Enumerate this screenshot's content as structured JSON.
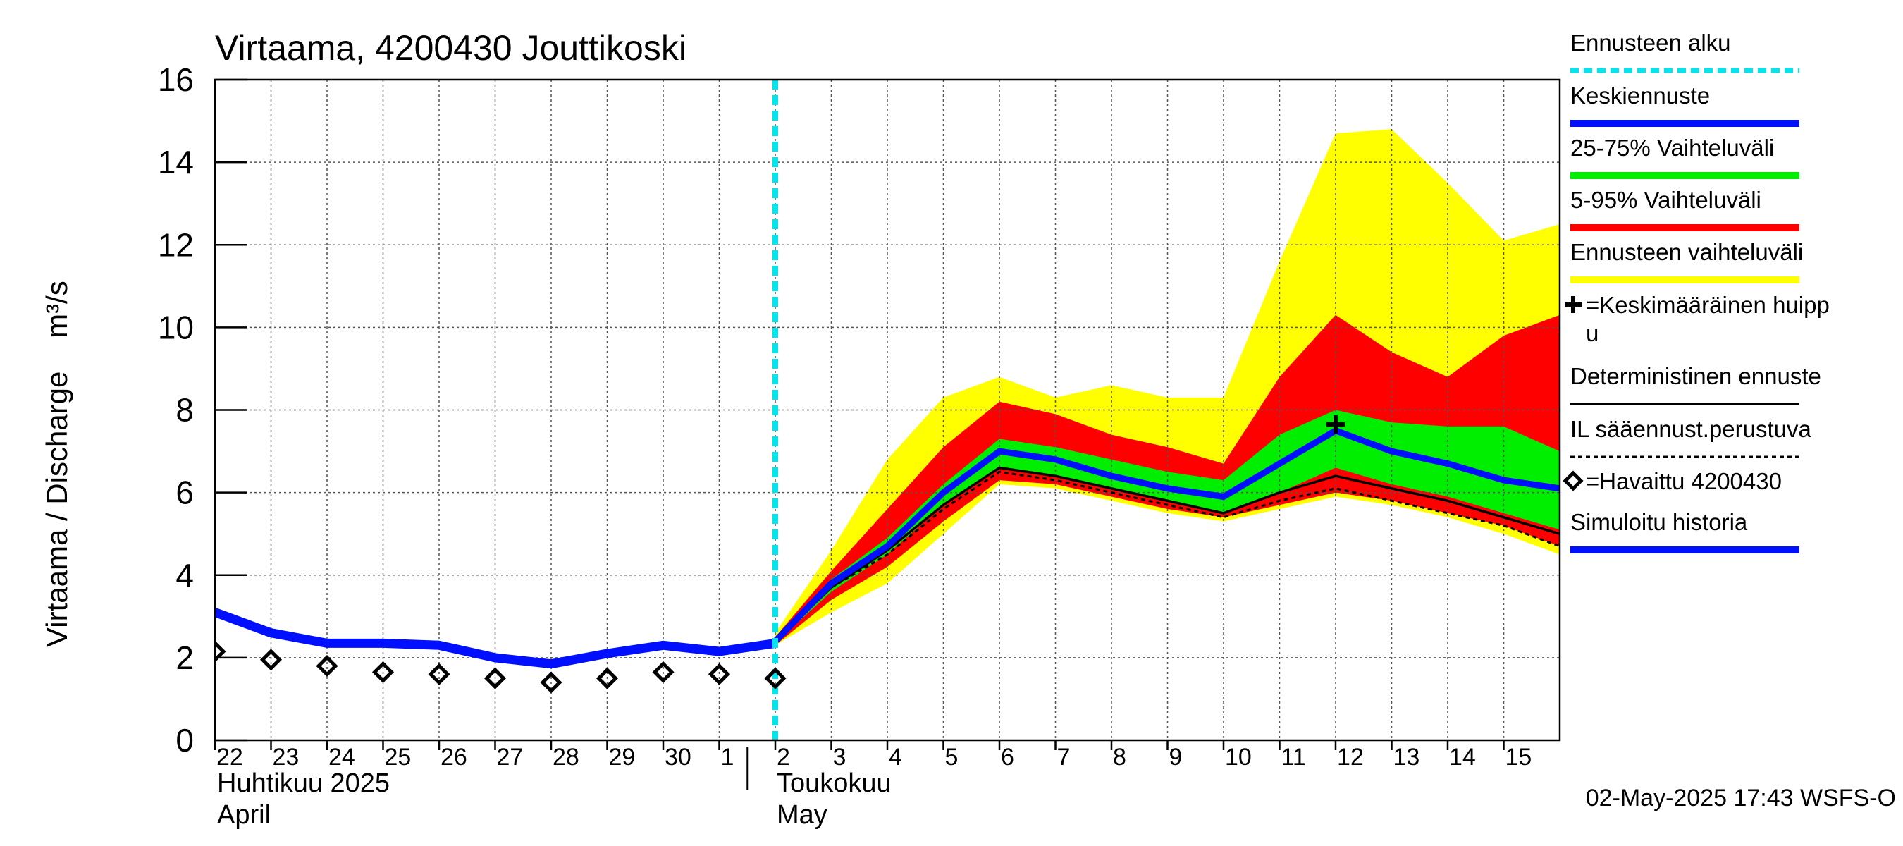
{
  "chart_data": {
    "type": "area",
    "title": "Virtaama, 4200430 Jouttikoski",
    "ylabel": "Virtaama / Discharge    m³/s",
    "ylim": [
      0,
      16
    ],
    "yticks": [
      0,
      2,
      4,
      6,
      8,
      10,
      12,
      14,
      16
    ],
    "x_day_labels": [
      "22",
      "23",
      "24",
      "25",
      "26",
      "27",
      "28",
      "29",
      "30",
      "1",
      "2",
      "3",
      "4",
      "5",
      "6",
      "7",
      "8",
      "9",
      "10",
      "11",
      "12",
      "13",
      "14",
      "15"
    ],
    "month_labels": [
      {
        "line1": "Huhtikuu  2025",
        "line2": "April"
      },
      {
        "line1": "Toukokuu",
        "line2": "May"
      }
    ],
    "forecast_start": "2025-05-02",
    "simulated_history": {
      "x": [
        "2025-04-22",
        "2025-04-23",
        "2025-04-24",
        "2025-04-25",
        "2025-04-26",
        "2025-04-27",
        "2025-04-28",
        "2025-04-29",
        "2025-04-30",
        "2025-05-01",
        "2025-05-02"
      ],
      "y": [
        3.1,
        2.6,
        2.35,
        2.35,
        2.3,
        2.0,
        1.85,
        2.1,
        2.3,
        2.15,
        2.35
      ]
    },
    "observed": {
      "x": [
        "2025-04-22",
        "2025-04-23",
        "2025-04-24",
        "2025-04-25",
        "2025-04-26",
        "2025-04-27",
        "2025-04-28",
        "2025-04-29",
        "2025-04-30",
        "2025-05-01",
        "2025-05-02"
      ],
      "y": [
        2.15,
        1.95,
        1.8,
        1.65,
        1.6,
        1.5,
        1.4,
        1.5,
        1.65,
        1.6,
        1.5
      ]
    },
    "forecast": {
      "x": [
        "2025-05-02",
        "2025-05-03",
        "2025-05-04",
        "2025-05-05",
        "2025-05-06",
        "2025-05-07",
        "2025-05-08",
        "2025-05-09",
        "2025-05-10",
        "2025-05-11",
        "2025-05-12",
        "2025-05-13",
        "2025-05-14",
        "2025-05-15",
        "2025-05-16"
      ],
      "range_min": [
        2.3,
        3.1,
        3.8,
        5.0,
        6.2,
        6.1,
        5.8,
        5.5,
        5.3,
        5.6,
        5.9,
        5.7,
        5.4,
        5.0,
        4.5
      ],
      "range_max": [
        2.6,
        4.6,
        6.8,
        8.3,
        8.8,
        8.3,
        8.6,
        8.3,
        8.3,
        11.6,
        14.7,
        14.8,
        13.5,
        12.1,
        12.5
      ],
      "p5": [
        2.3,
        3.4,
        4.2,
        5.3,
        6.3,
        6.2,
        5.9,
        5.6,
        5.4,
        5.7,
        6.0,
        5.8,
        5.5,
        5.2,
        4.7
      ],
      "p95": [
        2.5,
        4.1,
        5.6,
        7.1,
        8.2,
        7.9,
        7.4,
        7.1,
        6.7,
        8.8,
        10.3,
        9.4,
        8.8,
        9.8,
        10.3
      ],
      "p25": [
        2.35,
        3.6,
        4.5,
        5.7,
        6.6,
        6.4,
        6.1,
        5.8,
        5.5,
        6.0,
        6.6,
        6.2,
        5.9,
        5.5,
        5.1
      ],
      "p75": [
        2.45,
        3.9,
        4.9,
        6.2,
        7.3,
        7.1,
        6.8,
        6.5,
        6.3,
        7.4,
        8.0,
        7.7,
        7.6,
        7.6,
        7.0
      ],
      "mean": [
        2.4,
        3.8,
        4.7,
        6.0,
        7.0,
        6.8,
        6.4,
        6.1,
        5.9,
        6.7,
        7.5,
        7.0,
        6.7,
        6.3,
        6.1
      ],
      "deterministic": [
        2.4,
        3.7,
        4.6,
        5.7,
        6.6,
        6.4,
        6.1,
        5.8,
        5.5,
        6.0,
        6.4,
        6.1,
        5.8,
        5.4,
        5.0
      ],
      "il_weather": [
        2.4,
        3.7,
        4.5,
        5.6,
        6.5,
        6.3,
        6.0,
        5.7,
        5.4,
        5.8,
        6.1,
        5.8,
        5.5,
        5.2,
        4.7
      ]
    },
    "mean_peak": {
      "x": "2025-05-12",
      "y": 7.65
    },
    "legend": [
      {
        "label": "Ennusteen alku",
        "style": "dotted",
        "color": "#00e5ee"
      },
      {
        "label": "Keskiennuste",
        "style": "line",
        "color": "#0010ff"
      },
      {
        "label": "25-75% Vaihteluväli",
        "style": "line",
        "color": "#00ee00"
      },
      {
        "label": "5-95% Vaihteluväli",
        "style": "line",
        "color": "#ff0000"
      },
      {
        "label": "Ennusteen vaihteluväli",
        "style": "line",
        "color": "#ffff00"
      },
      {
        "label": "=Keskimääräinen huipp",
        "label2": "u",
        "style": "plus",
        "color": "#000000"
      },
      {
        "label": "Deterministinen ennuste",
        "style": "thin",
        "color": "#000000"
      },
      {
        "label": "IL sääennust.perustuva",
        "style": "dashed",
        "color": "#000000"
      },
      {
        "label": "=Havaittu 4200430",
        "style": "diamond",
        "color": "#000000"
      },
      {
        "label": "Simuloitu historia",
        "style": "line",
        "color": "#0010ff"
      }
    ],
    "colors": {
      "range": "#ffff00",
      "p5_95": "#ff0000",
      "p25_75": "#00ee00",
      "mean": "#0010ff",
      "history": "#0010ff",
      "forecast_start": "#00e5ee"
    },
    "footer": "02-May-2025 17:43 WSFS-O"
  }
}
